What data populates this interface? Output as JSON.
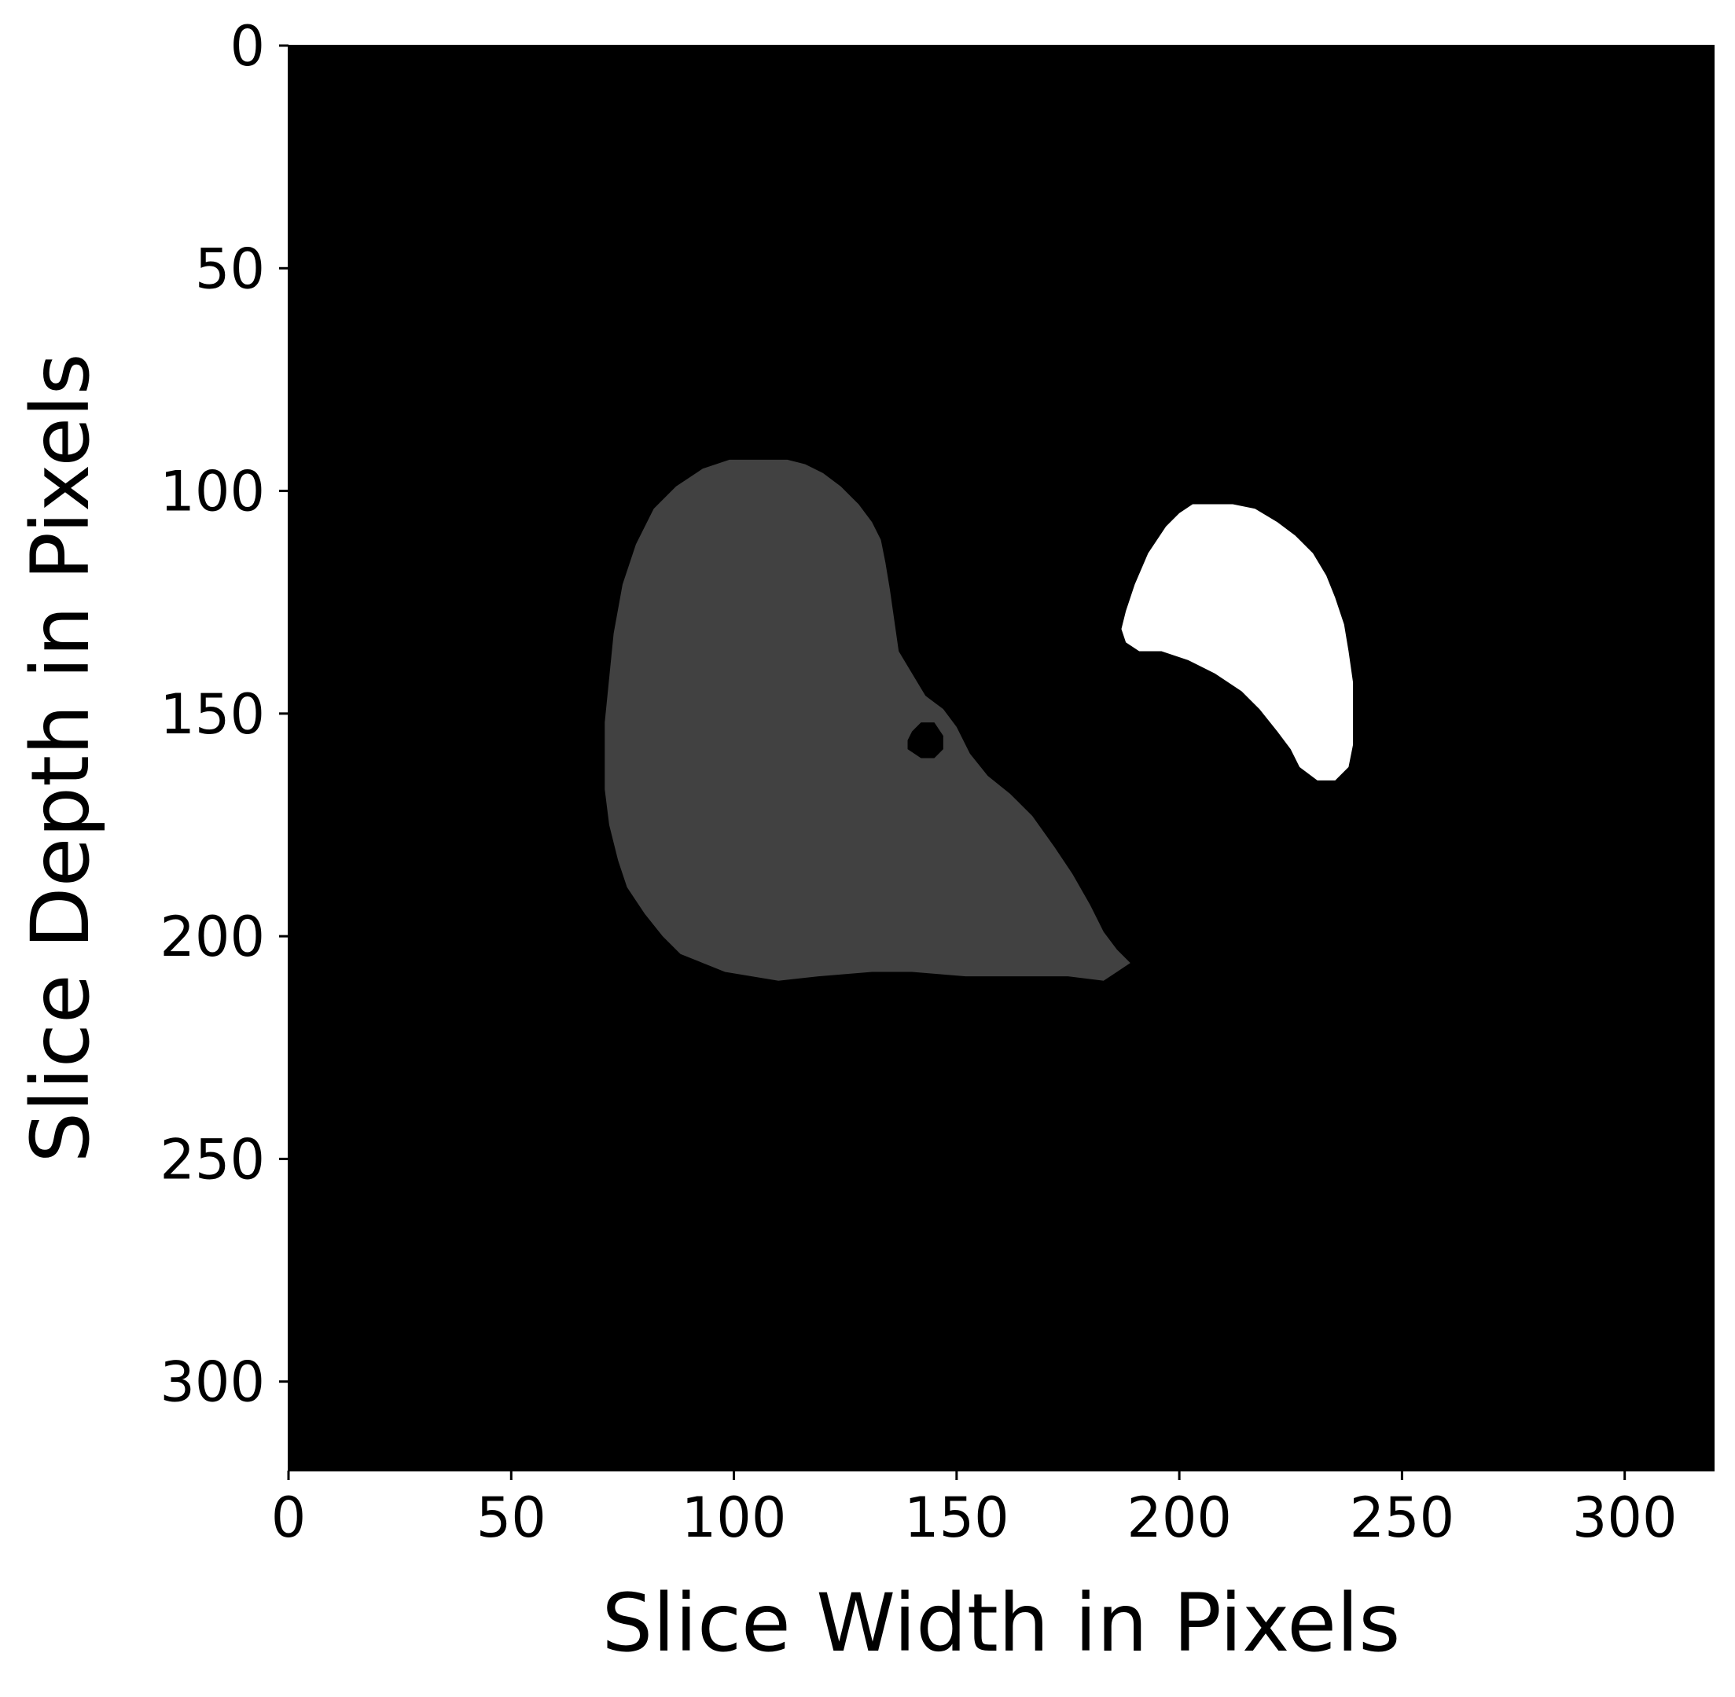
{
  "chart_data": {
    "type": "heatmap",
    "subtype": "segmentation-mask",
    "xlabel": "Slice Width in Pixels",
    "ylabel": "Slice Depth in Pixels",
    "xlim": [
      0,
      320
    ],
    "ylim": [
      320,
      0
    ],
    "y_inverted": true,
    "xticks": [
      0,
      50,
      100,
      150,
      200,
      250,
      300
    ],
    "yticks": [
      0,
      50,
      100,
      150,
      200,
      250,
      300
    ],
    "xtick_labels": [
      "0",
      "50",
      "100",
      "150",
      "200",
      "250",
      "300"
    ],
    "ytick_labels": [
      "0",
      "50",
      "100",
      "150",
      "200",
      "250",
      "300"
    ],
    "grid": false,
    "colors": {
      "background": "#000000",
      "region_gray": "#414141",
      "region_white": "#ffffff"
    },
    "regions": [
      {
        "id": "gray-region",
        "fill": "#414141",
        "outline": [
          [
            104,
            93
          ],
          [
            112,
            93
          ],
          [
            116,
            94
          ],
          [
            120,
            96
          ],
          [
            124,
            99
          ],
          [
            128,
            103
          ],
          [
            131,
            107
          ],
          [
            133,
            111
          ],
          [
            134,
            116
          ],
          [
            135,
            122
          ],
          [
            136,
            129
          ],
          [
            137,
            136
          ],
          [
            140,
            141
          ],
          [
            143,
            146
          ],
          [
            147,
            149
          ],
          [
            150,
            153
          ],
          [
            153,
            159
          ],
          [
            157,
            164
          ],
          [
            162,
            168
          ],
          [
            167,
            173
          ],
          [
            172,
            180
          ],
          [
            176,
            186
          ],
          [
            180,
            193
          ],
          [
            183,
            199
          ],
          [
            186,
            203
          ],
          [
            189,
            206
          ],
          [
            186,
            208
          ],
          [
            183,
            210
          ],
          [
            175,
            209
          ],
          [
            170,
            209
          ],
          [
            160,
            209
          ],
          [
            152,
            209
          ],
          [
            140,
            208
          ],
          [
            131,
            208
          ],
          [
            119,
            209
          ],
          [
            110,
            210
          ],
          [
            104,
            209
          ],
          [
            98,
            208
          ],
          [
            93,
            206
          ],
          [
            88,
            204
          ],
          [
            84,
            200
          ],
          [
            80,
            195
          ],
          [
            76,
            189
          ],
          [
            74,
            183
          ],
          [
            72,
            175
          ],
          [
            71,
            167
          ],
          [
            71,
            152
          ],
          [
            72,
            142
          ],
          [
            73,
            132
          ],
          [
            75,
            121
          ],
          [
            78,
            112
          ],
          [
            82,
            104
          ],
          [
            87,
            99
          ],
          [
            93,
            95
          ],
          [
            99,
            93
          ]
        ]
      },
      {
        "id": "hole",
        "fill": "#000000",
        "outline": [
          [
            140,
            154
          ],
          [
            142,
            152
          ],
          [
            145,
            152
          ],
          [
            147,
            155
          ],
          [
            147,
            158
          ],
          [
            145,
            160
          ],
          [
            142,
            160
          ],
          [
            139,
            158
          ],
          [
            139,
            156
          ]
        ]
      },
      {
        "id": "white-region",
        "fill": "#ffffff",
        "outline": [
          [
            203,
            103
          ],
          [
            212,
            103
          ],
          [
            217,
            104
          ],
          [
            222,
            107
          ],
          [
            226,
            110
          ],
          [
            230,
            114
          ],
          [
            233,
            119
          ],
          [
            235,
            124
          ],
          [
            237,
            130
          ],
          [
            238,
            136
          ],
          [
            239,
            143
          ],
          [
            239,
            150
          ],
          [
            239,
            157
          ],
          [
            238,
            162
          ],
          [
            235,
            165
          ],
          [
            231,
            165
          ],
          [
            227,
            162
          ],
          [
            225,
            158
          ],
          [
            222,
            154
          ],
          [
            218,
            149
          ],
          [
            214,
            145
          ],
          [
            208,
            141
          ],
          [
            202,
            138
          ],
          [
            196,
            136
          ],
          [
            191,
            136
          ],
          [
            188,
            134
          ],
          [
            187,
            131
          ],
          [
            188,
            127
          ],
          [
            190,
            121
          ],
          [
            193,
            114
          ],
          [
            197,
            108
          ],
          [
            200,
            105
          ]
        ]
      }
    ]
  }
}
